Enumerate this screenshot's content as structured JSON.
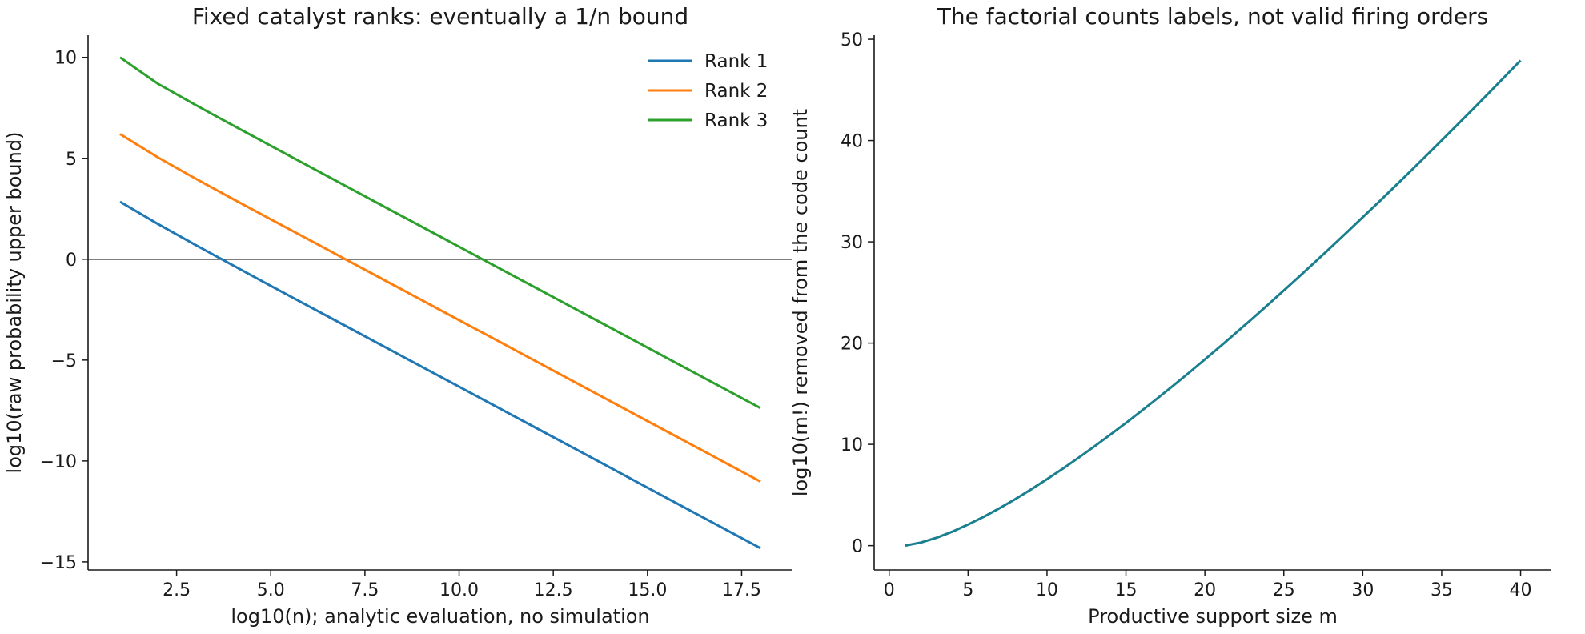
{
  "chart_data": [
    {
      "type": "line",
      "title": "Fixed catalyst ranks: eventually a 1/n bound",
      "xlabel": "log10(n); analytic evaluation, no simulation",
      "ylabel": "log10(raw probability upper bound)",
      "xlim": [
        0.15,
        18.85
      ],
      "ylim": [
        -15.4,
        11.1
      ],
      "xticks": [
        2.5,
        5.0,
        7.5,
        10.0,
        12.5,
        15.0,
        17.5
      ],
      "xtick_labels": [
        "2.5",
        "5.0",
        "7.5",
        "10.0",
        "12.5",
        "15.0",
        "17.5"
      ],
      "yticks": [
        -15,
        -10,
        -5,
        0,
        5,
        10
      ],
      "ytick_labels": [
        "−15",
        "−10",
        "−5",
        "0",
        "5",
        "10"
      ],
      "hline": 0,
      "legend": "top-right",
      "grid": false,
      "x": [
        1,
        2,
        3,
        4,
        5,
        6,
        7,
        8,
        9,
        10,
        11,
        12,
        13,
        14,
        15,
        16,
        17,
        18
      ],
      "series": [
        {
          "name": "Rank 1",
          "color": "#1f77b4",
          "values": [
            2.85,
            1.75,
            0.71,
            -0.31,
            -1.32,
            -2.32,
            -3.32,
            -4.32,
            -5.32,
            -6.32,
            -7.32,
            -8.32,
            -9.32,
            -10.32,
            -11.32,
            -12.32,
            -13.32,
            -14.32
          ]
        },
        {
          "name": "Rank 2",
          "color": "#ff7f0e",
          "values": [
            6.2,
            5.05,
            4.0,
            2.98,
            1.98,
            0.98,
            -0.02,
            -1.02,
            -2.02,
            -3.02,
            -4.02,
            -5.02,
            -6.02,
            -7.02,
            -8.02,
            -9.02,
            -10.02,
            -11.02
          ]
        },
        {
          "name": "Rank 3",
          "color": "#2ca02c",
          "values": [
            10.0,
            8.7,
            7.65,
            6.63,
            5.62,
            4.62,
            3.62,
            2.62,
            1.62,
            0.62,
            -0.38,
            -1.38,
            -2.38,
            -3.38,
            -4.38,
            -5.38,
            -6.38,
            -7.38
          ]
        }
      ]
    },
    {
      "type": "line",
      "title": "The factorial counts labels, not valid firing orders",
      "xlabel": "Productive support size m",
      "ylabel": "log10(m!) removed from the code count",
      "xlim": [
        -0.95,
        41.95
      ],
      "ylim": [
        -2.4,
        50.4
      ],
      "xticks": [
        0,
        5,
        10,
        15,
        20,
        25,
        30,
        35,
        40
      ],
      "xtick_labels": [
        "0",
        "5",
        "10",
        "15",
        "20",
        "25",
        "30",
        "35",
        "40"
      ],
      "yticks": [
        0,
        10,
        20,
        30,
        40,
        50
      ],
      "ytick_labels": [
        "0",
        "10",
        "20",
        "30",
        "40",
        "50"
      ],
      "grid": false,
      "x": [
        1,
        2,
        3,
        4,
        5,
        6,
        7,
        8,
        9,
        10,
        11,
        12,
        13,
        14,
        15,
        16,
        17,
        18,
        19,
        20,
        21,
        22,
        23,
        24,
        25,
        26,
        27,
        28,
        29,
        30,
        31,
        32,
        33,
        34,
        35,
        36,
        37,
        38,
        39,
        40
      ],
      "series": [
        {
          "name": "",
          "color": "#1a7f8e",
          "values": [
            0.0,
            0.301,
            0.778,
            1.38,
            2.079,
            2.857,
            3.702,
            4.606,
            5.56,
            6.56,
            7.601,
            8.68,
            9.794,
            10.94,
            12.116,
            13.321,
            14.551,
            15.806,
            17.085,
            18.386,
            19.708,
            21.051,
            22.413,
            23.793,
            25.191,
            26.606,
            28.037,
            29.484,
            30.947,
            32.424,
            33.915,
            35.42,
            36.939,
            38.47,
            40.014,
            41.571,
            43.139,
            44.719,
            46.31,
            47.912
          ]
        }
      ]
    }
  ]
}
